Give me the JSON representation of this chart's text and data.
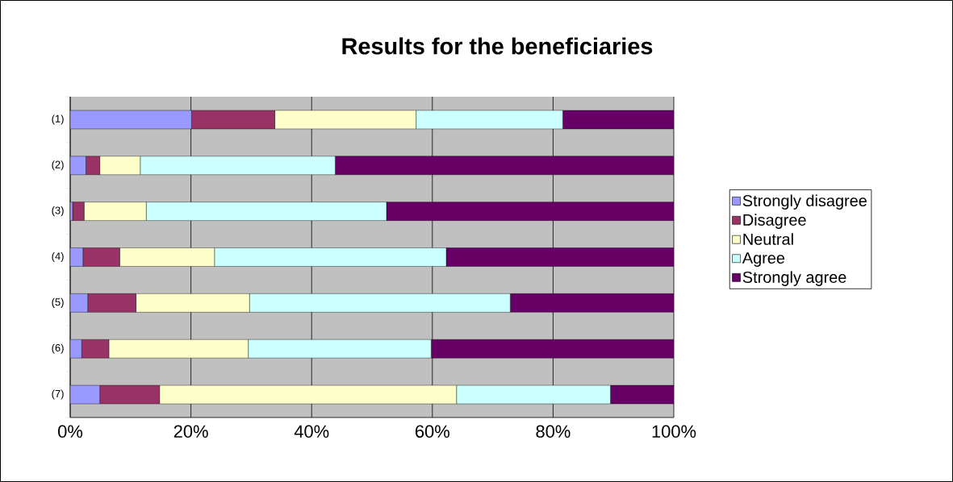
{
  "chart_data": {
    "type": "bar",
    "orientation": "horizontal",
    "stacked": true,
    "title": "Results for the beneficiaries",
    "categories": [
      "(1)",
      "(2)",
      "(3)",
      "(4)",
      "(5)",
      "(6)",
      "(7)"
    ],
    "series": [
      {
        "name": "Strongly disagree",
        "color": "#9999ff",
        "values": [
          20.1,
          2.6,
          0.4,
          2.1,
          2.9,
          1.9,
          4.9
        ]
      },
      {
        "name": "Disagree",
        "color": "#993366",
        "values": [
          13.8,
          2.3,
          1.9,
          6.1,
          8.0,
          4.5,
          9.9
        ]
      },
      {
        "name": "Neutral",
        "color": "#ffffcc",
        "values": [
          23.4,
          6.7,
          10.3,
          15.7,
          18.8,
          23.1,
          49.2
        ]
      },
      {
        "name": "Agree",
        "color": "#ccffff",
        "values": [
          24.3,
          32.3,
          39.8,
          38.4,
          43.2,
          30.3,
          25.5
        ]
      },
      {
        "name": "Strongly agree",
        "color": "#660066",
        "values": [
          18.4,
          56.1,
          47.6,
          37.7,
          27.1,
          40.2,
          10.5
        ]
      }
    ],
    "xlim": [
      0,
      100
    ],
    "xticks": [
      {
        "value": 0,
        "label": "0%"
      },
      {
        "value": 20,
        "label": "20%"
      },
      {
        "value": 40,
        "label": "40%"
      },
      {
        "value": 60,
        "label": "60%"
      },
      {
        "value": 80,
        "label": "80%"
      },
      {
        "value": 100,
        "label": "100%"
      }
    ],
    "grid": "x",
    "legend": "right"
  }
}
